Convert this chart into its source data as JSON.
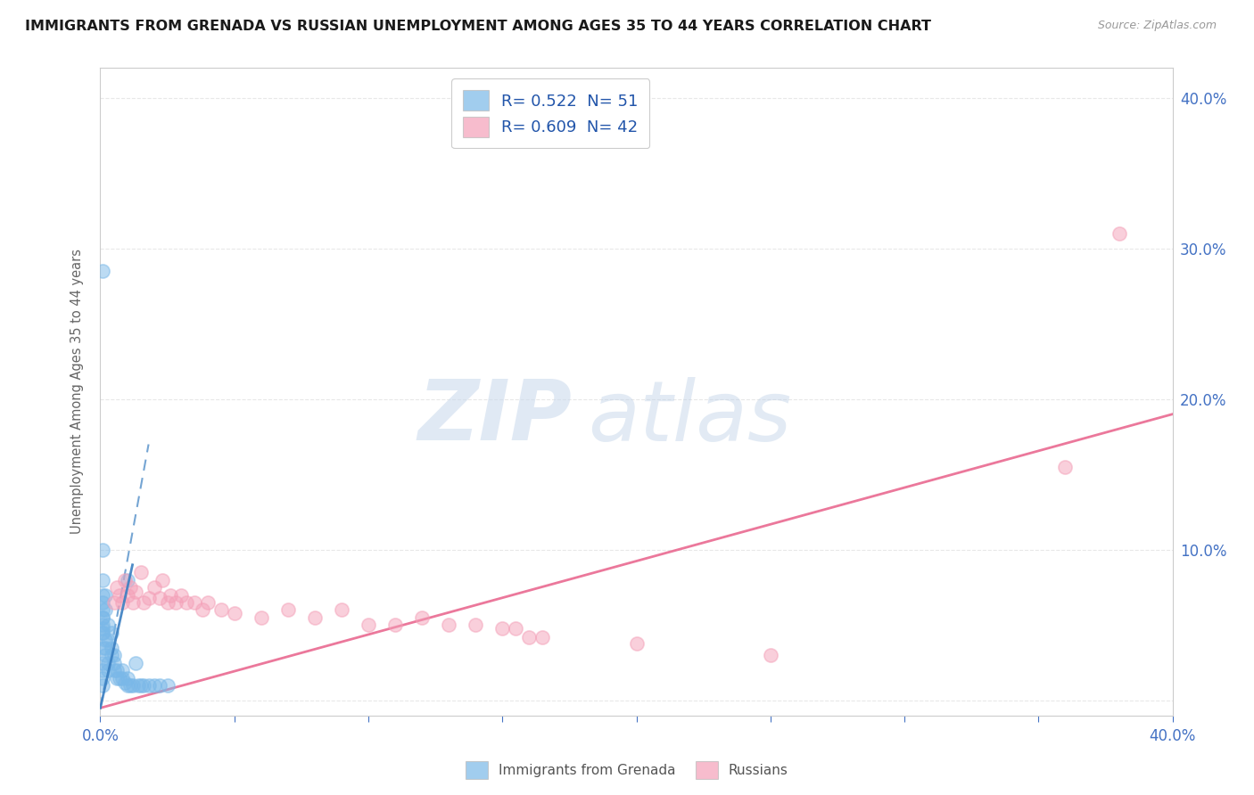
{
  "title": "IMMIGRANTS FROM GRENADA VS RUSSIAN UNEMPLOYMENT AMONG AGES 35 TO 44 YEARS CORRELATION CHART",
  "source": "Source: ZipAtlas.com",
  "ylabel": "Unemployment Among Ages 35 to 44 years",
  "xlim": [
    0.0,
    0.4
  ],
  "ylim": [
    -0.01,
    0.42
  ],
  "yticks": [
    0.0,
    0.1,
    0.2,
    0.3,
    0.4
  ],
  "ytick_labels": [
    "",
    "10.0%",
    "20.0%",
    "30.0%",
    "40.0%"
  ],
  "xticks": [
    0.0,
    0.05,
    0.1,
    0.15,
    0.2,
    0.25,
    0.3,
    0.35,
    0.4
  ],
  "legend_label_blue": "R= 0.522  N= 51",
  "legend_label_pink": "R= 0.609  N= 42",
  "legend_label_bottom_blue": "Immigrants from Grenada",
  "legend_label_bottom_pink": "Russians",
  "blue_scatter": [
    [
      0.001,
      0.055
    ],
    [
      0.001,
      0.08
    ],
    [
      0.001,
      0.065
    ],
    [
      0.001,
      0.045
    ],
    [
      0.002,
      0.04
    ],
    [
      0.002,
      0.035
    ],
    [
      0.002,
      0.03
    ],
    [
      0.002,
      0.06
    ],
    [
      0.002,
      0.07
    ],
    [
      0.003,
      0.04
    ],
    [
      0.003,
      0.05
    ],
    [
      0.003,
      0.025
    ],
    [
      0.003,
      0.02
    ],
    [
      0.004,
      0.03
    ],
    [
      0.004,
      0.045
    ],
    [
      0.004,
      0.035
    ],
    [
      0.005,
      0.02
    ],
    [
      0.005,
      0.025
    ],
    [
      0.005,
      0.03
    ],
    [
      0.006,
      0.02
    ],
    [
      0.006,
      0.015
    ],
    [
      0.007,
      0.015
    ],
    [
      0.008,
      0.015
    ],
    [
      0.008,
      0.02
    ],
    [
      0.009,
      0.012
    ],
    [
      0.01,
      0.01
    ],
    [
      0.01,
      0.015
    ],
    [
      0.01,
      0.08
    ],
    [
      0.011,
      0.01
    ],
    [
      0.012,
      0.01
    ],
    [
      0.013,
      0.025
    ],
    [
      0.014,
      0.01
    ],
    [
      0.015,
      0.01
    ],
    [
      0.016,
      0.01
    ],
    [
      0.018,
      0.01
    ],
    [
      0.02,
      0.01
    ],
    [
      0.022,
      0.01
    ],
    [
      0.025,
      0.01
    ],
    [
      0.001,
      0.285
    ],
    [
      0.001,
      0.1
    ],
    [
      0.001,
      0.07
    ],
    [
      0.001,
      0.06
    ],
    [
      0.001,
      0.055
    ],
    [
      0.001,
      0.05
    ],
    [
      0.001,
      0.048
    ],
    [
      0.001,
      0.045
    ],
    [
      0.001,
      0.035
    ],
    [
      0.001,
      0.025
    ],
    [
      0.001,
      0.02
    ],
    [
      0.001,
      0.015
    ],
    [
      0.001,
      0.01
    ]
  ],
  "pink_scatter": [
    [
      0.005,
      0.065
    ],
    [
      0.006,
      0.075
    ],
    [
      0.007,
      0.07
    ],
    [
      0.008,
      0.065
    ],
    [
      0.009,
      0.08
    ],
    [
      0.01,
      0.07
    ],
    [
      0.011,
      0.075
    ],
    [
      0.012,
      0.065
    ],
    [
      0.013,
      0.072
    ],
    [
      0.015,
      0.085
    ],
    [
      0.016,
      0.065
    ],
    [
      0.018,
      0.068
    ],
    [
      0.02,
      0.075
    ],
    [
      0.022,
      0.068
    ],
    [
      0.023,
      0.08
    ],
    [
      0.025,
      0.065
    ],
    [
      0.026,
      0.07
    ],
    [
      0.028,
      0.065
    ],
    [
      0.03,
      0.07
    ],
    [
      0.032,
      0.065
    ],
    [
      0.035,
      0.065
    ],
    [
      0.038,
      0.06
    ],
    [
      0.04,
      0.065
    ],
    [
      0.045,
      0.06
    ],
    [
      0.05,
      0.058
    ],
    [
      0.06,
      0.055
    ],
    [
      0.07,
      0.06
    ],
    [
      0.08,
      0.055
    ],
    [
      0.09,
      0.06
    ],
    [
      0.1,
      0.05
    ],
    [
      0.11,
      0.05
    ],
    [
      0.12,
      0.055
    ],
    [
      0.13,
      0.05
    ],
    [
      0.14,
      0.05
    ],
    [
      0.15,
      0.048
    ],
    [
      0.155,
      0.048
    ],
    [
      0.16,
      0.042
    ],
    [
      0.165,
      0.042
    ],
    [
      0.2,
      0.038
    ],
    [
      0.25,
      0.03
    ],
    [
      0.36,
      0.155
    ],
    [
      0.38,
      0.31
    ]
  ],
  "blue_line_pts": [
    [
      0.0,
      -0.005
    ],
    [
      0.018,
      0.17
    ]
  ],
  "pink_line_pts": [
    [
      0.0,
      -0.005
    ],
    [
      0.4,
      0.19
    ]
  ],
  "blue_color": "#7ab8e8",
  "pink_color": "#f4a0b8",
  "blue_line_color": "#3a7fc1",
  "pink_line_color": "#e8608a",
  "bg_color": "#ffffff",
  "grid_color": "#e8e8e8",
  "title_color": "#1a1a1a",
  "axis_label_color": "#666666",
  "tick_color": "#4472c4",
  "source_color": "#999999"
}
